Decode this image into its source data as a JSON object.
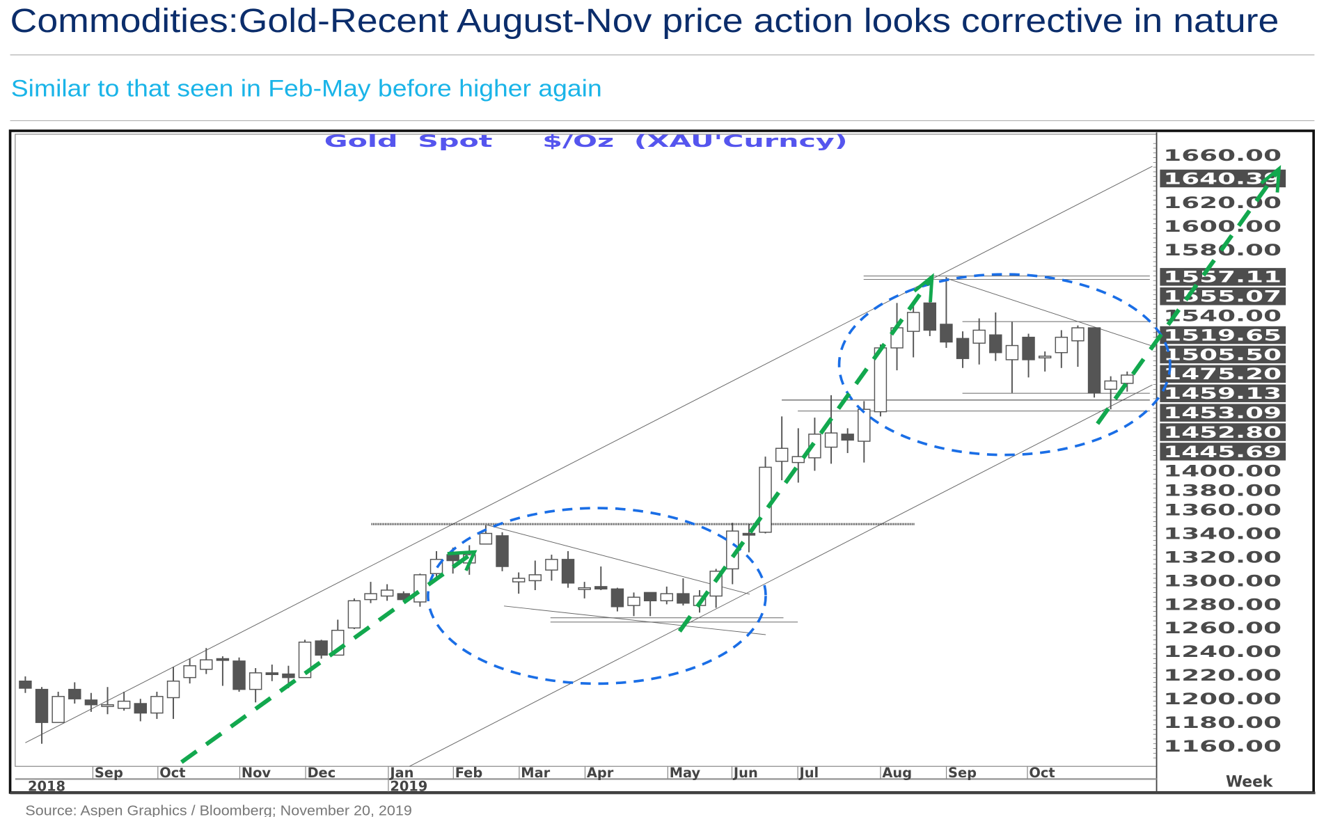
{
  "header": {
    "title": "Commodities:Gold-Recent August-Nov price action looks corrective in nature",
    "subtitle": "Similar to that seen in Feb-May before higher again",
    "title_color": "#0b2d6b",
    "subtitle_color": "#1ab4e8"
  },
  "source": "Source: Aspen Graphics / Bloomberg; November 20, 2019",
  "chart_data": {
    "type": "candlestick",
    "title": "Gold  Spot     $/Oz  (XAU'Curncy)",
    "frequency_label": "Week",
    "ylim": [
      1150,
      1670
    ],
    "y_ticks": [
      "1660.00",
      "1620.00",
      "1600.00",
      "1580.00",
      "1540.00",
      "1400.00",
      "1380.00",
      "1360.00",
      "1340.00",
      "1320.00",
      "1300.00",
      "1280.00",
      "1260.00",
      "1240.00",
      "1220.00",
      "1200.00",
      "1180.00",
      "1160.00"
    ],
    "price_markers": [
      "1640.39",
      "1557.11",
      "1555.07",
      "1519.65",
      "1505.50",
      "1475.20",
      "1459.13",
      "1453.09",
      "1452.80",
      "1445.69"
    ],
    "month_labels": [
      "Sep",
      "Oct",
      "Nov",
      "Dec",
      "Jan",
      "Feb",
      "Mar",
      "Apr",
      "May",
      "Jun",
      "Jul",
      "Aug",
      "Sep",
      "Oct"
    ],
    "year_labels": [
      "2018",
      "2019"
    ],
    "colors": {
      "up": "#ffffff",
      "down": "#555555",
      "arrow": "#12a84e",
      "ellipse": "#1a6ee6",
      "title": "#5555ee"
    },
    "candles_ohlc": [
      [
        1215,
        1219,
        1205,
        1209
      ],
      [
        1208,
        1210,
        1162,
        1180
      ],
      [
        1180,
        1206,
        1180,
        1202
      ],
      [
        1208,
        1214,
        1196,
        1200
      ],
      [
        1199,
        1205,
        1189,
        1195
      ],
      [
        1194,
        1210,
        1187,
        1195
      ],
      [
        1192,
        1206,
        1190,
        1198
      ],
      [
        1196,
        1200,
        1181,
        1188
      ],
      [
        1188,
        1206,
        1183,
        1202
      ],
      [
        1201,
        1227,
        1183,
        1215
      ],
      [
        1218,
        1234,
        1213,
        1228
      ],
      [
        1225,
        1243,
        1221,
        1233
      ],
      [
        1234,
        1236,
        1211,
        1233
      ],
      [
        1232,
        1235,
        1206,
        1208
      ],
      [
        1208,
        1226,
        1197,
        1222
      ],
      [
        1222,
        1229,
        1215,
        1221
      ],
      [
        1221,
        1228,
        1209,
        1218
      ],
      [
        1218,
        1250,
        1219,
        1248
      ],
      [
        1249,
        1250,
        1234,
        1237
      ],
      [
        1237,
        1267,
        1237,
        1258
      ],
      [
        1260,
        1285,
        1259,
        1283
      ],
      [
        1284,
        1299,
        1281,
        1289
      ],
      [
        1287,
        1297,
        1283,
        1292
      ],
      [
        1289,
        1291,
        1283,
        1284
      ],
      [
        1282,
        1306,
        1278,
        1305
      ],
      [
        1306,
        1325,
        1301,
        1318
      ],
      [
        1322,
        1328,
        1306,
        1317
      ],
      [
        1315,
        1330,
        1305,
        1322
      ],
      [
        1331,
        1347,
        1333,
        1340
      ],
      [
        1338,
        1341,
        1308,
        1312
      ],
      [
        1299,
        1307,
        1289,
        1302
      ],
      [
        1300,
        1317,
        1292,
        1305
      ],
      [
        1309,
        1322,
        1300,
        1318
      ],
      [
        1318,
        1325,
        1294,
        1298
      ],
      [
        1294,
        1299,
        1285,
        1294
      ],
      [
        1295,
        1312,
        1292,
        1293
      ],
      [
        1293,
        1294,
        1274,
        1278
      ],
      [
        1279,
        1290,
        1270,
        1286
      ],
      [
        1290,
        1290,
        1270,
        1283
      ],
      [
        1283,
        1295,
        1280,
        1289
      ],
      [
        1289,
        1302,
        1279,
        1281
      ],
      [
        1279,
        1292,
        1273,
        1287
      ],
      [
        1287,
        1310,
        1277,
        1308
      ],
      [
        1310,
        1349,
        1297,
        1342
      ],
      [
        1340,
        1348,
        1324,
        1339
      ],
      [
        1341,
        1405,
        1340,
        1396
      ],
      [
        1401,
        1439,
        1385,
        1412
      ],
      [
        1400,
        1429,
        1383,
        1405
      ],
      [
        1404,
        1438,
        1393,
        1424
      ],
      [
        1413,
        1457,
        1399,
        1425
      ],
      [
        1424,
        1429,
        1408,
        1419
      ],
      [
        1418,
        1452,
        1400,
        1445
      ],
      [
        1443,
        1500,
        1439,
        1497
      ],
      [
        1497,
        1535,
        1478,
        1514
      ],
      [
        1511,
        1534,
        1489,
        1527
      ],
      [
        1535,
        1540,
        1507,
        1512
      ],
      [
        1517,
        1557,
        1497,
        1502
      ],
      [
        1505,
        1511,
        1480,
        1488
      ],
      [
        1501,
        1522,
        1483,
        1512
      ],
      [
        1508,
        1527,
        1486,
        1493
      ],
      [
        1487,
        1519,
        1459,
        1499
      ],
      [
        1506,
        1509,
        1472,
        1487
      ],
      [
        1489,
        1494,
        1477,
        1490
      ],
      [
        1493,
        1512,
        1480,
        1506
      ],
      [
        1503,
        1516,
        1481,
        1514
      ],
      [
        1514,
        1514,
        1455,
        1459
      ],
      [
        1462,
        1473,
        1445,
        1469
      ],
      [
        1467,
        1477,
        1460,
        1474
      ]
    ]
  }
}
